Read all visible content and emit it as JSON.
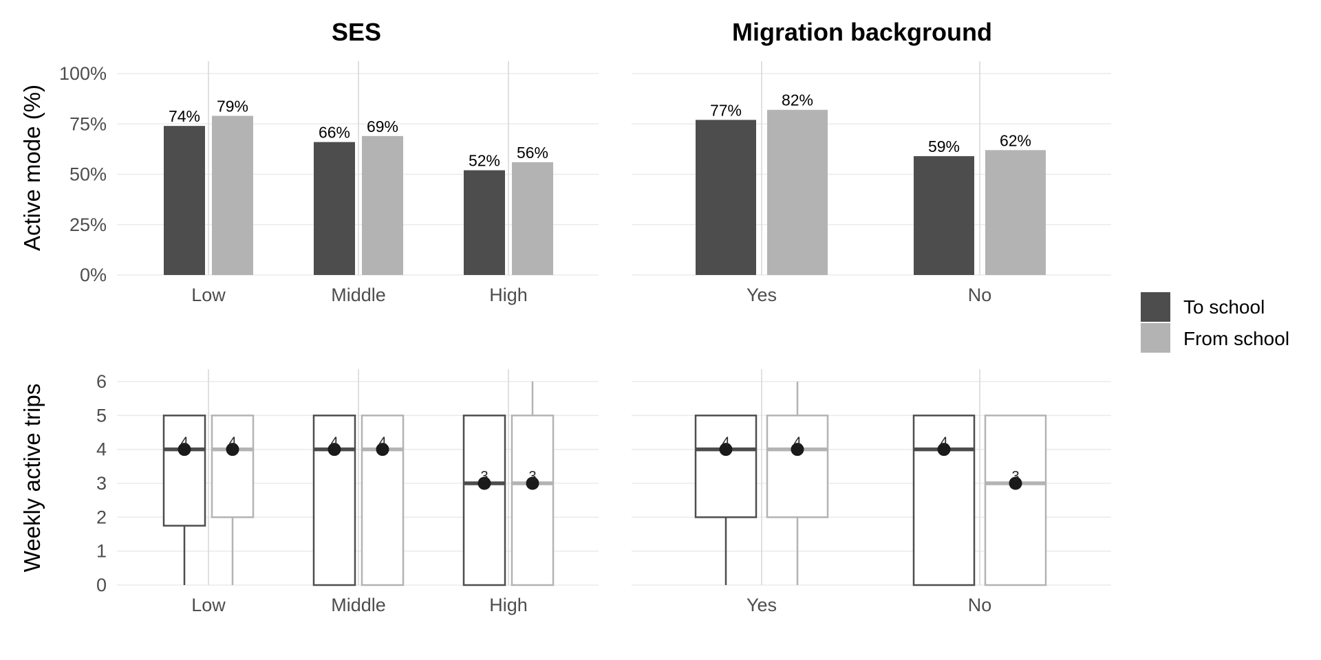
{
  "colors": {
    "to_school": "#4d4d4d",
    "from_school": "#b3b3b3",
    "point": "#1a1a1a"
  },
  "legend": {
    "to_label": "To school",
    "from_label": "From school"
  },
  "facets": {
    "ses_title": "SES",
    "migration_title": "Migration background"
  },
  "chart_data": [
    {
      "type": "bar",
      "panel": "SES",
      "ylabel": "Active mode (%)",
      "ylim": [
        0,
        100
      ],
      "yticks": [
        "0%",
        "25%",
        "50%",
        "75%",
        "100%"
      ],
      "categories": [
        "Low",
        "Middle",
        "High"
      ],
      "series": [
        {
          "name": "To school",
          "values": [
            74,
            66,
            52
          ],
          "labels": [
            "74%",
            "66%",
            "52%"
          ]
        },
        {
          "name": "From school",
          "values": [
            79,
            69,
            56
          ],
          "labels": [
            "79%",
            "69%",
            "56%"
          ]
        }
      ]
    },
    {
      "type": "bar",
      "panel": "Migration background",
      "ylim": [
        0,
        100
      ],
      "categories": [
        "Yes",
        "No"
      ],
      "series": [
        {
          "name": "To school",
          "values": [
            77,
            59
          ],
          "labels": [
            "77%",
            "59%"
          ]
        },
        {
          "name": "From school",
          "values": [
            82,
            62
          ],
          "labels": [
            "82%",
            "62%"
          ]
        }
      ]
    },
    {
      "type": "box",
      "panel": "SES",
      "ylabel": "Weekly active trips",
      "ylim": [
        0,
        6
      ],
      "yticks": [
        "0",
        "1",
        "2",
        "3",
        "4",
        "5",
        "6"
      ],
      "categories": [
        "Low",
        "Middle",
        "High"
      ],
      "series": [
        {
          "name": "To school",
          "boxes": [
            {
              "min": 0,
              "q1": 1.75,
              "median": 4,
              "q3": 5,
              "max": 5,
              "mean": 4,
              "label": "4"
            },
            {
              "min": 0,
              "q1": 0,
              "median": 4,
              "q3": 5,
              "max": 5,
              "mean": 4,
              "label": "4"
            },
            {
              "min": 0,
              "q1": 0,
              "median": 3,
              "q3": 5,
              "max": 5,
              "mean": 3,
              "label": "3"
            }
          ]
        },
        {
          "name": "From school",
          "boxes": [
            {
              "min": 0,
              "q1": 2,
              "median": 4,
              "q3": 5,
              "max": 5,
              "mean": 4,
              "label": "4"
            },
            {
              "min": 0,
              "q1": 0,
              "median": 4,
              "q3": 5,
              "max": 5,
              "mean": 4,
              "label": "4"
            },
            {
              "min": 0,
              "q1": 0,
              "median": 3,
              "q3": 5,
              "max": 6,
              "mean": 3,
              "label": "3"
            }
          ]
        }
      ]
    },
    {
      "type": "box",
      "panel": "Migration background",
      "ylim": [
        0,
        6
      ],
      "categories": [
        "Yes",
        "No"
      ],
      "series": [
        {
          "name": "To school",
          "boxes": [
            {
              "min": 0,
              "q1": 2,
              "median": 4,
              "q3": 5,
              "max": 5,
              "mean": 4,
              "label": "4"
            },
            {
              "min": 0,
              "q1": 0,
              "median": 4,
              "q3": 5,
              "max": 5,
              "mean": 4,
              "label": "4"
            }
          ]
        },
        {
          "name": "From school",
          "boxes": [
            {
              "min": 0,
              "q1": 2,
              "median": 4,
              "q3": 5,
              "max": 6,
              "mean": 4,
              "label": "4"
            },
            {
              "min": 0,
              "q1": 0,
              "median": 3,
              "q3": 5,
              "max": 5,
              "mean": 3,
              "label": "3"
            }
          ]
        }
      ]
    }
  ]
}
